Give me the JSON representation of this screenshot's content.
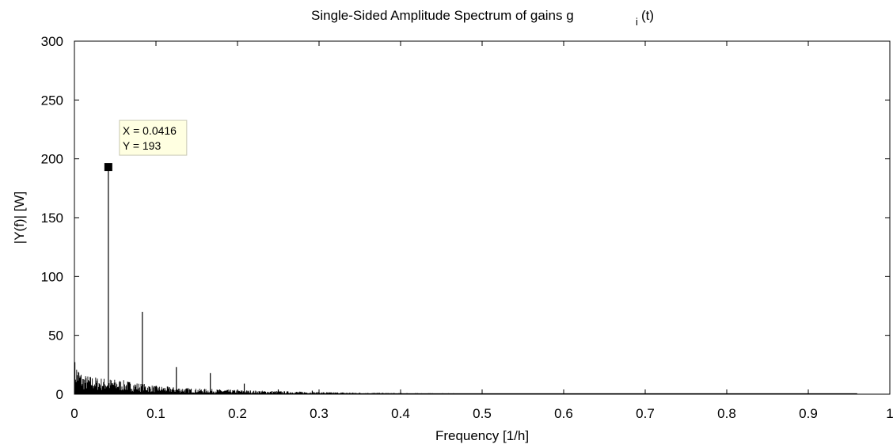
{
  "chart_data": {
    "type": "line",
    "title": "Single-Sided Amplitude Spectrum of gains g",
    "title_subscript": "i",
    "title_suffix": "(t)",
    "xlabel": "Frequency [1/h]",
    "ylabel": "|Y(f)| [W]",
    "xlim": [
      0,
      1
    ],
    "ylim": [
      0,
      300
    ],
    "x_ticks": [
      "0",
      "0.1",
      "0.2",
      "0.3",
      "0.4",
      "0.5",
      "0.6",
      "0.7",
      "0.8",
      "0.9",
      "1"
    ],
    "y_ticks": [
      "0",
      "50",
      "100",
      "150",
      "200",
      "250",
      "300"
    ],
    "grid": false,
    "series": [
      {
        "color": "#000000",
        "peaks": [
          {
            "x": 0.0416,
            "y": 193
          },
          {
            "x": 0.0833,
            "y": 70
          },
          {
            "x": 0.125,
            "y": 23
          },
          {
            "x": 0.1667,
            "y": 18
          },
          {
            "x": 0.2083,
            "y": 9
          },
          {
            "x": 0.25,
            "y": 4
          },
          {
            "x": 0.2917,
            "y": 3
          }
        ],
        "noise_floor": [
          {
            "x": 0.0,
            "y": 25
          },
          {
            "x": 0.01,
            "y": 14
          },
          {
            "x": 0.03,
            "y": 12
          },
          {
            "x": 0.06,
            "y": 10
          },
          {
            "x": 0.1,
            "y": 6
          },
          {
            "x": 0.15,
            "y": 4
          },
          {
            "x": 0.2,
            "y": 3
          },
          {
            "x": 0.3,
            "y": 1.5
          },
          {
            "x": 0.4,
            "y": 0.8
          },
          {
            "x": 0.5,
            "y": 0.5
          },
          {
            "x": 0.7,
            "y": 0.4
          },
          {
            "x": 0.96,
            "y": 0.3
          }
        ]
      }
    ],
    "datatip": {
      "x_text": "X = 0.0416",
      "y_text": "Y = 193",
      "x": 0.0416,
      "y": 193
    }
  }
}
